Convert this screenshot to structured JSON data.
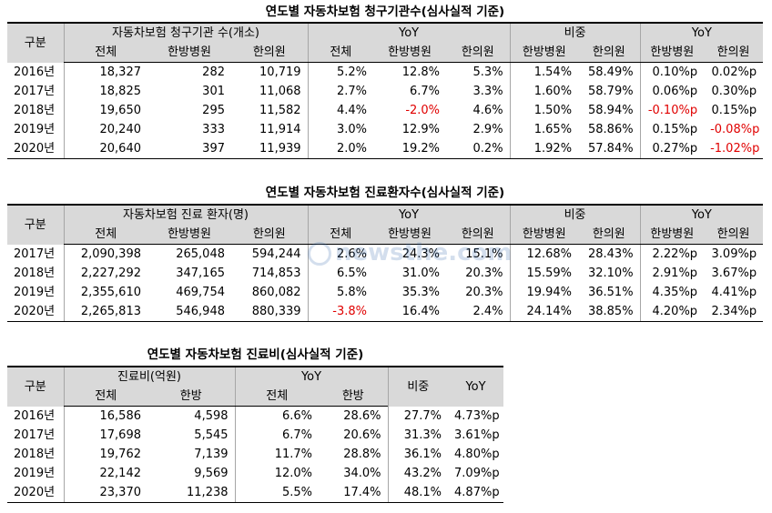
{
  "t1": {
    "title": "연도별 자동차보험 청구기관수(심사실적 기준)",
    "h_gubun": "구분",
    "h_group1": "자동차보험 청구기관 수(개소)",
    "h_yoy": "YoY",
    "h_share": "비중",
    "h_yoy2": "YoY",
    "h_total": "전체",
    "h_kh": "한방병원",
    "h_kc": "한의원",
    "h_total2": "전체",
    "h_kh2": "한방병원",
    "h_kc2": "한의원",
    "h_kh3": "한방병원",
    "h_kc3": "한의원",
    "h_kh4": "한방병원",
    "h_kc4": "한의원",
    "rows": [
      {
        "year": "2016년",
        "c": [
          "18,327",
          "282",
          "10,719",
          "5.2%",
          "12.8%",
          "5.3%",
          "1.54%",
          "58.49%",
          "0.10%p",
          "0.02%p"
        ]
      },
      {
        "year": "2017년",
        "c": [
          "18,825",
          "301",
          "11,068",
          "2.7%",
          "6.7%",
          "3.3%",
          "1.60%",
          "58.79%",
          "0.06%p",
          "0.30%p"
        ]
      },
      {
        "year": "2018년",
        "c": [
          "19,650",
          "295",
          "11,582",
          "4.4%",
          "-2.0%",
          "4.6%",
          "1.50%",
          "58.94%",
          "-0.10%p",
          "0.15%p"
        ]
      },
      {
        "year": "2019년",
        "c": [
          "20,240",
          "333",
          "11,914",
          "3.0%",
          "12.9%",
          "2.9%",
          "1.65%",
          "58.86%",
          "0.15%p",
          "-0.08%p"
        ]
      },
      {
        "year": "2020년",
        "c": [
          "20,640",
          "397",
          "11,939",
          "2.0%",
          "19.2%",
          "0.2%",
          "1.92%",
          "57.84%",
          "0.27%p",
          "-1.02%p"
        ]
      }
    ]
  },
  "t2": {
    "title": "연도별 자동차보험 진료환자수(심사실적 기준)",
    "h_gubun": "구분",
    "h_group1": "자동차보험 진료 환자(명)",
    "h_yoy": "YoY",
    "h_share": "비중",
    "h_yoy2": "YoY",
    "h_total": "전체",
    "h_kh": "한방병원",
    "h_kc": "한의원",
    "h_total2": "전체",
    "h_kh2": "한방병원",
    "h_kc2": "한의원",
    "h_kh3": "한방병원",
    "h_kc3": "한의원",
    "h_kh4": "한방병원",
    "h_kc4": "한의원",
    "rows": [
      {
        "year": "2017년",
        "c": [
          "2,090,398",
          "265,048",
          "594,244",
          "2.6%",
          "24.3%",
          "15.1%",
          "12.68%",
          "28.43%",
          "2.22%p",
          "3.09%p"
        ]
      },
      {
        "year": "2018년",
        "c": [
          "2,227,292",
          "347,165",
          "714,853",
          "6.5%",
          "31.0%",
          "20.3%",
          "15.59%",
          "32.10%",
          "2.91%p",
          "3.67%p"
        ]
      },
      {
        "year": "2019년",
        "c": [
          "2,355,610",
          "469,754",
          "860,082",
          "5.8%",
          "35.3%",
          "20.3%",
          "19.94%",
          "36.51%",
          "4.35%p",
          "4.41%p"
        ]
      },
      {
        "year": "2020년",
        "c": [
          "2,265,813",
          "546,948",
          "880,339",
          "-3.8%",
          "16.4%",
          "2.4%",
          "24.14%",
          "38.85%",
          "4.20%p",
          "2.34%p"
        ]
      }
    ]
  },
  "t3": {
    "title": "연도별 자동차보험 진료비(심사실적 기준)",
    "h_gubun": "구분",
    "h_group1": "진료비(억원)",
    "h_yoy": "YoY",
    "h_share": "비중",
    "h_yoy2": "YoY",
    "h_total": "전체",
    "h_hb": "한방",
    "h_total2": "전체",
    "h_hb2": "한방",
    "rows": [
      {
        "year": "2016년",
        "c": [
          "16,586",
          "4,598",
          "6.6%",
          "28.6%",
          "27.7%",
          "4.73%p"
        ]
      },
      {
        "year": "2017년",
        "c": [
          "17,698",
          "5,545",
          "6.7%",
          "20.6%",
          "31.3%",
          "3.61%p"
        ]
      },
      {
        "year": "2018년",
        "c": [
          "19,762",
          "7,139",
          "11.7%",
          "28.8%",
          "36.1%",
          "4.80%p"
        ]
      },
      {
        "year": "2019년",
        "c": [
          "22,142",
          "9,569",
          "12.0%",
          "34.0%",
          "43.2%",
          "7.09%p"
        ]
      },
      {
        "year": "2020년",
        "c": [
          "23,370",
          "11,238",
          "5.5%",
          "17.4%",
          "48.1%",
          "4.87%p"
        ]
      }
    ]
  },
  "watermark": "newsthe.com",
  "colors": {
    "header_bg": "#d9d9d9",
    "negative": "#e00000"
  }
}
